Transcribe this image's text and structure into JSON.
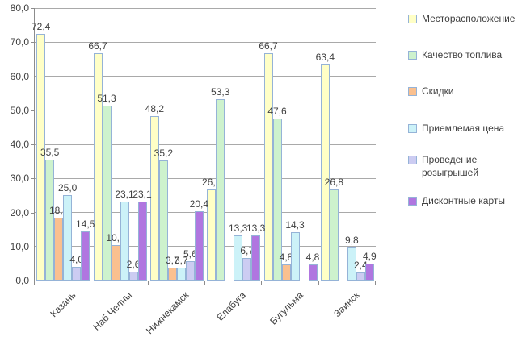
{
  "chart_data": {
    "type": "bar",
    "title": "",
    "xlabel": "",
    "ylabel": "",
    "categories": [
      "Казань",
      "Наб Челны",
      "Нижнекамск",
      "Елабуга",
      "Бугульма",
      "Заинск"
    ],
    "series": [
      {
        "name": "Месторасположение",
        "color": "#ffffc6",
        "values": [
          72.4,
          66.7,
          48.2,
          26.7,
          66.7,
          63.4
        ]
      },
      {
        "name": "Качество топлива",
        "color": "#cdf2cd",
        "values": [
          35.5,
          51.3,
          35.2,
          53.3,
          47.6,
          26.8
        ]
      },
      {
        "name": "Скидки",
        "color": "#fac08f",
        "values": [
          18.4,
          10.3,
          3.7,
          null,
          4.8,
          null
        ]
      },
      {
        "name": "Приемлемая цена",
        "color": "#ccf2f8",
        "values": [
          25.0,
          23.1,
          3.7,
          13.3,
          14.3,
          9.8
        ]
      },
      {
        "name": "Проведение розыгрышей",
        "color": "#ccccf2",
        "values": [
          4.0,
          2.6,
          5.6,
          6.7,
          null,
          2.4
        ]
      },
      {
        "name": "Дисконтные карты",
        "color": "#b076e0",
        "values": [
          14.5,
          23.1,
          20.4,
          13.3,
          4.8,
          4.9
        ]
      }
    ],
    "ylim": [
      0,
      80
    ],
    "ytick_step": 10,
    "ytick_labels": [
      "0,0",
      "10,0",
      "20,0",
      "30,0",
      "40,0",
      "50,0",
      "60,0",
      "70,0",
      "80,0"
    ],
    "decimal_separator": ",",
    "grid": true,
    "data_labels": true,
    "legend_position": "right",
    "x_label_rotation": 45,
    "bar_border_color": "#95b3d7",
    "gridline_color": "#a9a9a9",
    "axis_color": "#8c8c8c",
    "text_color": "#404040"
  }
}
